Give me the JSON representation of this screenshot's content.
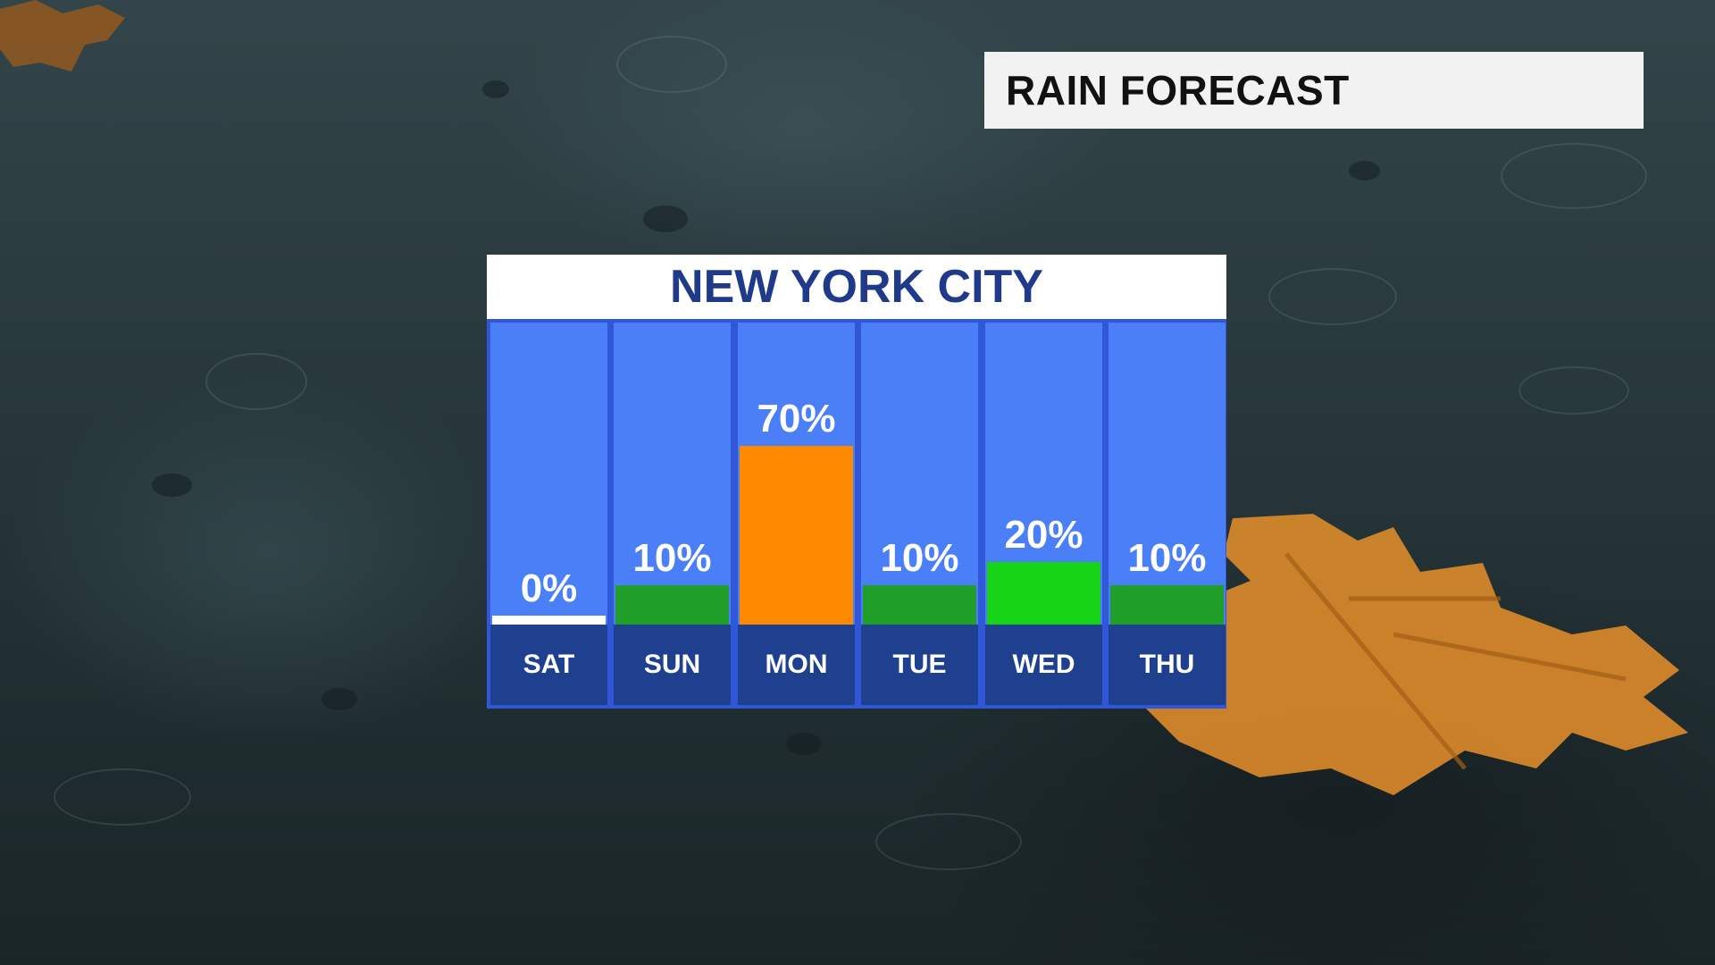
{
  "header": {
    "title": "RAIN FORECAST"
  },
  "chart_data": {
    "type": "bar",
    "title": "NEW YORK CITY",
    "categories": [
      "SAT",
      "SUN",
      "MON",
      "TUE",
      "WED",
      "THU"
    ],
    "values": [
      0,
      10,
      70,
      10,
      20,
      10
    ],
    "value_labels": [
      "0%",
      "10%",
      "70%",
      "10%",
      "20%",
      "10%"
    ],
    "unit": "%",
    "ylim": [
      0,
      100
    ],
    "bar_colors": [
      "#ffffff",
      "#1f9e2a",
      "#ff8a00",
      "#1f9e2a",
      "#16d416",
      "#1f9e2a"
    ],
    "grid": false
  },
  "colors": {
    "column_background": "#4a7ff7",
    "day_label_background": "#1f3f8f",
    "title_text": "#1f3a8a"
  }
}
